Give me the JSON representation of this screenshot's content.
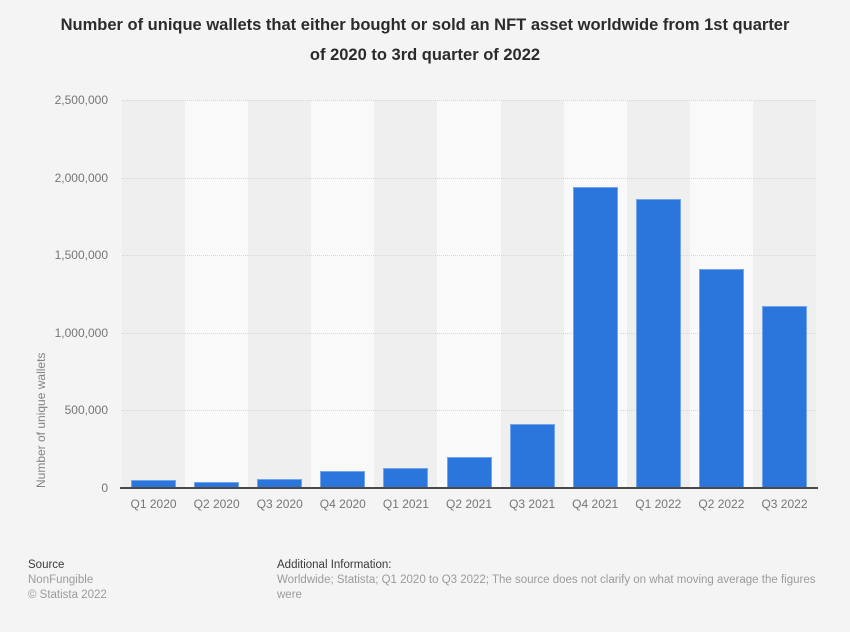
{
  "title": "Number of unique wallets that either bought or sold an NFT asset worldwide from 1st quarter of 2020 to 3rd quarter of 2022",
  "chart_data": {
    "type": "bar",
    "title": "Number of unique wallets that either bought or sold an NFT asset worldwide from 1st quarter of 2020 to 3rd quarter of 2022",
    "categories": [
      "Q1 2020",
      "Q2 2020",
      "Q3 2020",
      "Q4 2020",
      "Q1 2021",
      "Q2 2021",
      "Q3 2021",
      "Q4 2021",
      "Q1 2022",
      "Q2 2022",
      "Q3 2022"
    ],
    "values": [
      55000,
      40000,
      57000,
      110000,
      127000,
      200000,
      412000,
      1940000,
      1860000,
      1410000,
      1170000
    ],
    "xlabel": "",
    "ylabel": "Number of unique wallets",
    "ylim": [
      0,
      2500000
    ],
    "yticks": [
      0,
      500000,
      1000000,
      1500000,
      2000000,
      2500000
    ],
    "ytick_labels": [
      "0",
      "500,000",
      "1,000,000",
      "1,500,000",
      "2,000,000",
      "2,500,000"
    ],
    "grid": "horizontal-dotted",
    "legend": "none",
    "bar_color": "#2b76dc",
    "band_colors": [
      "#efefef",
      "#f9f9f9"
    ]
  },
  "footer": {
    "source_label": "Source",
    "source_name": "NonFungible",
    "copyright": "© Statista 2022",
    "additional_info_label": "Additional Information:",
    "additional_info_text": "Worldwide; Statista; Q1 2020 to Q3 2022; The source does not clarify on what moving average the figures were"
  }
}
